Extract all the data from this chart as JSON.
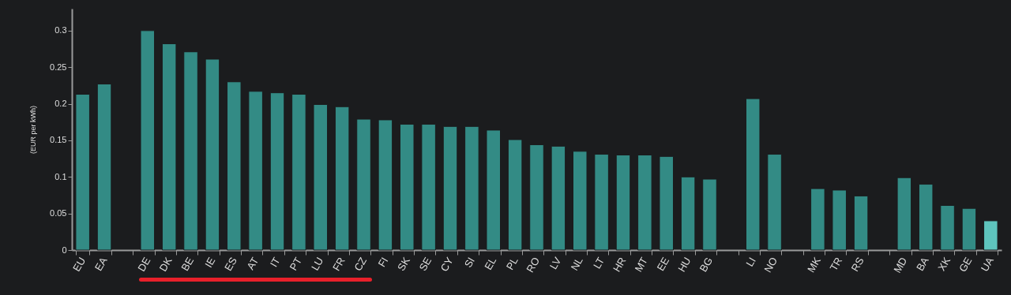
{
  "chart_data": {
    "type": "bar",
    "ylabel": "(EUR per kWh)",
    "categories": [
      "EU",
      "EA",
      null,
      "DE",
      "DK",
      "BE",
      "IE",
      "ES",
      "AT",
      "IT",
      "PT",
      "LU",
      "FR",
      "CZ",
      "FI",
      "SK",
      "SE",
      "CY",
      "SI",
      "EL",
      "PL",
      "RO",
      "LV",
      "NL",
      "LT",
      "HR",
      "MT",
      "EE",
      "HU",
      "BG",
      null,
      "LI",
      "NO",
      null,
      "MK",
      "TR",
      "RS",
      null,
      "MD",
      "BA",
      "XK",
      "GE",
      "UA"
    ],
    "values": [
      0.213,
      0.227,
      null,
      0.3,
      0.282,
      0.271,
      0.261,
      0.23,
      0.217,
      0.215,
      0.213,
      0.199,
      0.196,
      0.179,
      0.178,
      0.172,
      0.172,
      0.169,
      0.169,
      0.164,
      0.151,
      0.144,
      0.142,
      0.135,
      0.131,
      0.13,
      0.13,
      0.128,
      0.1,
      0.097,
      null,
      0.207,
      0.131,
      null,
      0.084,
      0.082,
      0.074,
      null,
      0.099,
      0.09,
      0.061,
      0.057,
      0.04
    ],
    "colors": [
      "#338b85",
      "#338b85",
      "#338b85",
      "#338b85",
      "#338b85",
      "#338b85",
      "#338b85",
      "#338b85",
      "#338b85",
      "#338b85",
      "#338b85",
      "#338b85",
      "#338b85",
      "#338b85",
      "#338b85",
      "#338b85",
      "#338b85",
      "#338b85",
      "#338b85",
      "#338b85",
      "#338b85",
      "#338b85",
      "#338b85",
      "#338b85",
      "#338b85",
      "#338b85",
      "#338b85",
      "#338b85",
      "#338b85",
      "#338b85",
      "#338b85",
      "#338b85",
      "#338b85",
      "#338b85",
      "#338b85",
      "#338b85",
      "#338b85",
      "#338b85",
      "#338b85",
      "#338b85",
      "#338b85",
      "#338b85",
      "#5ec4bd"
    ],
    "ylim": [
      0,
      0.33
    ],
    "yticks": [
      0,
      0.05,
      0.1,
      0.15,
      0.2,
      0.25,
      0.3
    ],
    "grid": false
  }
}
